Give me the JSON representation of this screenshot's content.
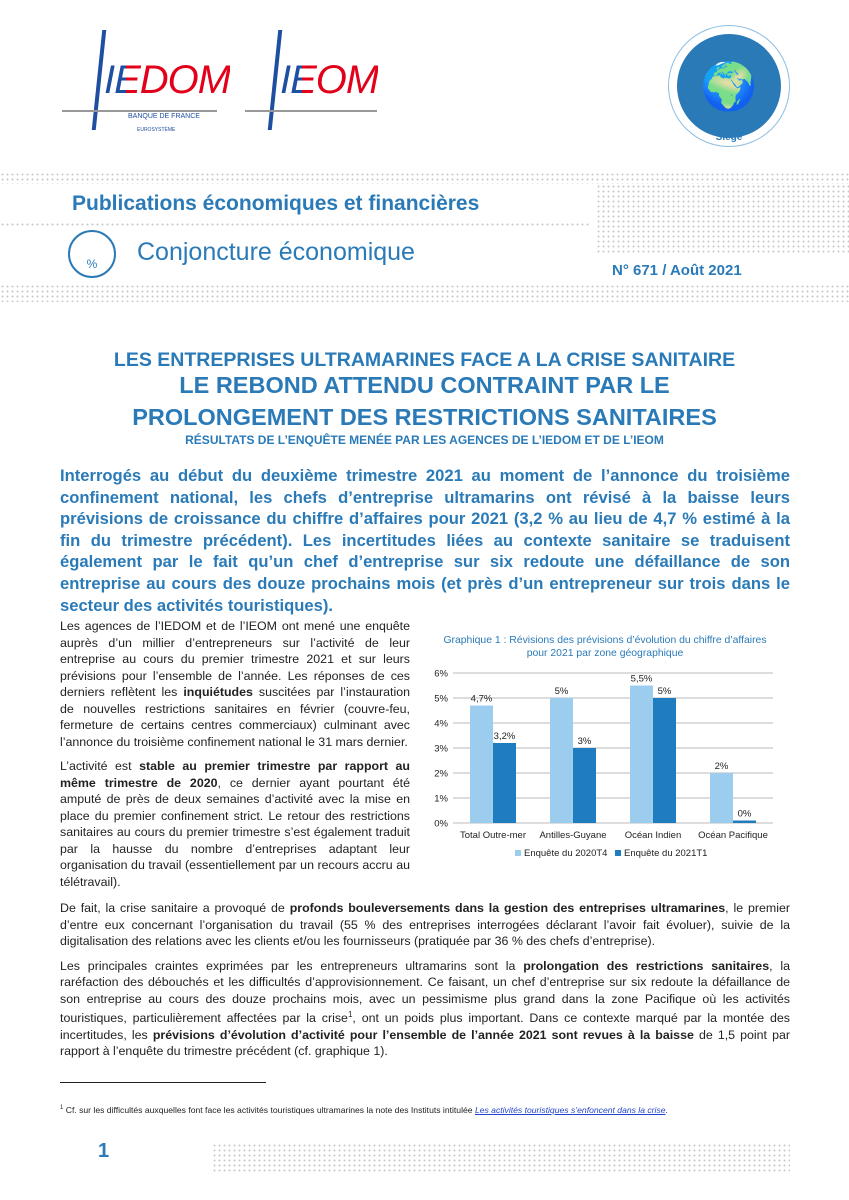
{
  "header": {
    "logo1": "IEDOM",
    "logo1_sub1": "BANQUE DE FRANCE",
    "logo1_sub2": "EUROSYSTÈME",
    "logo2": "IEOM",
    "badge": "Siège",
    "series_title": "Publications économiques et financières",
    "section": "Conjoncture économique",
    "issue": "N° 671 / Août 2021"
  },
  "headline": {
    "line1": "LES ENTREPRISES ULTRAMARINES FACE A LA CRISE SANITAIRE",
    "line2": "LE REBOND ATTENDU CONTRAINT PAR LE",
    "line3": "PROLONGEMENT DES RESTRICTIONS SANITAIRES",
    "subtitle": "RÉSULTATS DE L’ENQUÊTE MENÉE PAR LES AGENCES DE L’IEDOM ET DE L’IEOM"
  },
  "intro": "Interrogés au début du deuxième trimestre 2021 au moment de l’annonce du troisième confinement national, les chefs d’entreprise ultramarins ont révisé à la baisse leurs prévisions de croissance du chiffre d’affaires pour 2021 (3,2 % au lieu de 4,7 % estimé à la fin du trimestre précédent). Les incertitudes liées au contexte sanitaire se traduisent également par le fait qu’un chef d’entreprise sur six redoute une défaillance de son entreprise au cours des douze prochains mois (et près d’un entrepreneur sur trois dans le secteur des activités touristiques).",
  "left_paragraphs": [
    [
      {
        "t": "Les agences de l’IEDOM et de l’IEOM ont mené une enquête auprès d’un millier d’entrepreneurs sur l’activité de leur entreprise au cours du premier trimestre 2021 et sur leurs prévisions pour l’ensemble de l’année. Les réponses de ces derniers reflètent les "
      },
      {
        "t": "inquiétudes",
        "b": true
      },
      {
        "t": " suscitées par l’instauration de nouvelles restrictions sanitaires en février (couvre-feu, fermeture de certains centres commerciaux) culminant avec l’annonce du troisième confinement national le 31 mars dernier."
      }
    ],
    [
      {
        "t": "L’activité est "
      },
      {
        "t": "stable au premier trimestre par rapport au même trimestre de 2020",
        "b": true
      },
      {
        "t": ", ce dernier ayant pourtant été amputé de près de deux semaines d’activité avec la mise en place du premier confinement strict. Le retour des restrictions sanitaires au cours du premier trimestre s’est également traduit par la hausse du nombre d’entreprises adaptant leur organisation du travail (essentiellement par un recours accru au télétravail)."
      }
    ]
  ],
  "full_paragraphs": [
    [
      {
        "t": "De fait, la crise sanitaire a provoqué de "
      },
      {
        "t": "profonds bouleversements dans la gestion des entreprises ultramarines",
        "b": true
      },
      {
        "t": ", le premier d’entre eux concernant l’organisation du travail (55 % des entreprises interrogées déclarant l’avoir fait évoluer), suivie de la digitalisation des relations avec les clients et/ou les fournisseurs (pratiquée par 36 % des chefs d’entreprise)."
      }
    ],
    [
      {
        "t": "Les principales craintes exprimées par les entrepreneurs ultramarins sont la "
      },
      {
        "t": "prolongation des restrictions sanitaires",
        "b": true
      },
      {
        "t": ", la raréfaction des débouchés et les difficultés d’approvisionnement. Ce faisant, un chef d’entreprise sur six redoute la défaillance de son entreprise au cours des douze prochains mois, avec un pessimisme plus grand dans la zone Pacifique où les activités touristiques, particulièrement affectées par la crise"
      },
      {
        "t": "1",
        "sup": true
      },
      {
        "t": ", ont un poids plus important. Dans ce contexte marqué par la montée des incertitudes, les "
      },
      {
        "t": "prévisions d’évolution d’activité pour l’ensemble de l’année 2021 sont revues à la baisse",
        "b": true
      },
      {
        "t": " de 1,5 point par rapport à l’enquête du trimestre précédent (cf. graphique 1)."
      }
    ]
  ],
  "footnote": {
    "mark": "1",
    "text": " Cf. sur les difficultés auxquelles font face les activités touristiques ultramarines la note des Instituts intitulée ",
    "link": "Les activités touristiques s’enfoncent dans la crise",
    "end": "."
  },
  "page_number": "1",
  "colors": {
    "brand_blue": "#2a7ab8",
    "series_light": "#9dcdee",
    "series_dark": "#1f7dbf",
    "logo_red": "#e2001a"
  },
  "chart_data": {
    "type": "bar",
    "title": "Graphique 1 : Révisions des prévisions d’évolution du chiffre d’affaires pour 2021 par zone géographique",
    "title_line1": "Graphique 1 : Révisions des prévisions d’évolution du chiffre d’affaires",
    "title_line2": "pour 2021 par zone géographique",
    "categories": [
      "Total Outre-mer",
      "Antilles-Guyane",
      "Océan Indien",
      "Océan Pacifique"
    ],
    "series": [
      {
        "name": "Enquête du 2020T4",
        "values": [
          4.7,
          5,
          5.5,
          2
        ],
        "labels": [
          "4,7%",
          "5%",
          "5,5%",
          "2%"
        ]
      },
      {
        "name": "Enquête du 2021T1",
        "values": [
          3.2,
          3,
          5,
          0.1
        ],
        "labels": [
          "3,2%",
          "3%",
          "5%",
          "0%"
        ]
      }
    ],
    "yticks": [
      "0%",
      "1%",
      "2%",
      "3%",
      "4%",
      "5%",
      "6%"
    ],
    "ylim": [
      0,
      6
    ],
    "grid": true,
    "legend": "bottom"
  }
}
